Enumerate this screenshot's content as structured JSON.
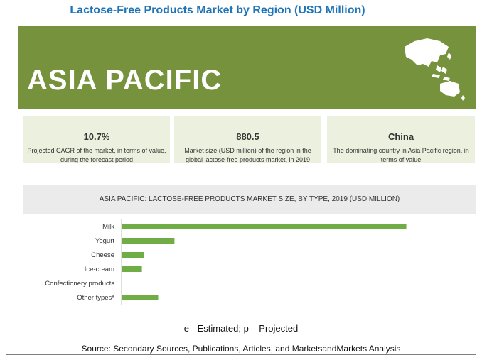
{
  "title": "Lactose-Free Products Market by Region (USD Million)",
  "region": "ASIA PACIFIC",
  "stats": [
    {
      "value": "10.7%",
      "desc": "Projected CAGR of the market, in terms of value, during the forecast period"
    },
    {
      "value": "880.5",
      "desc": "Market size (USD million) of the region in the global lactose-free products market, in 2019"
    },
    {
      "value": "China",
      "desc": "The dominating country in Asia Pacific region, in terms of value"
    }
  ],
  "chart_title": "ASIA PACIFIC: LACTOSE-FREE PRODUCTS MARKET SIZE, BY TYPE, 2019 (USD MILLION)",
  "note": "e - Estimated; p – Projected",
  "source": "Source: Secondary Sources, Publications, Articles, and MarketsandMarkets Analysis",
  "colors": {
    "banner": "#77923c",
    "bar": "#70ad47",
    "stat_bg": "#ebf1de",
    "title": "#1f74b8"
  },
  "chart_data": {
    "type": "bar",
    "orientation": "horizontal",
    "title": "ASIA PACIFIC: LACTOSE-FREE PRODUCTS MARKET SIZE, BY TYPE, 2019 (USD MILLION)",
    "categories": [
      "Milk",
      "Yogurt",
      "Cheese",
      "Ice-cream",
      "Confectionery products",
      "Other types*"
    ],
    "values": [
      700,
      130,
      55,
      50,
      0,
      90
    ],
    "xlim": [
      0,
      720
    ],
    "grid": false,
    "legend": "none"
  }
}
